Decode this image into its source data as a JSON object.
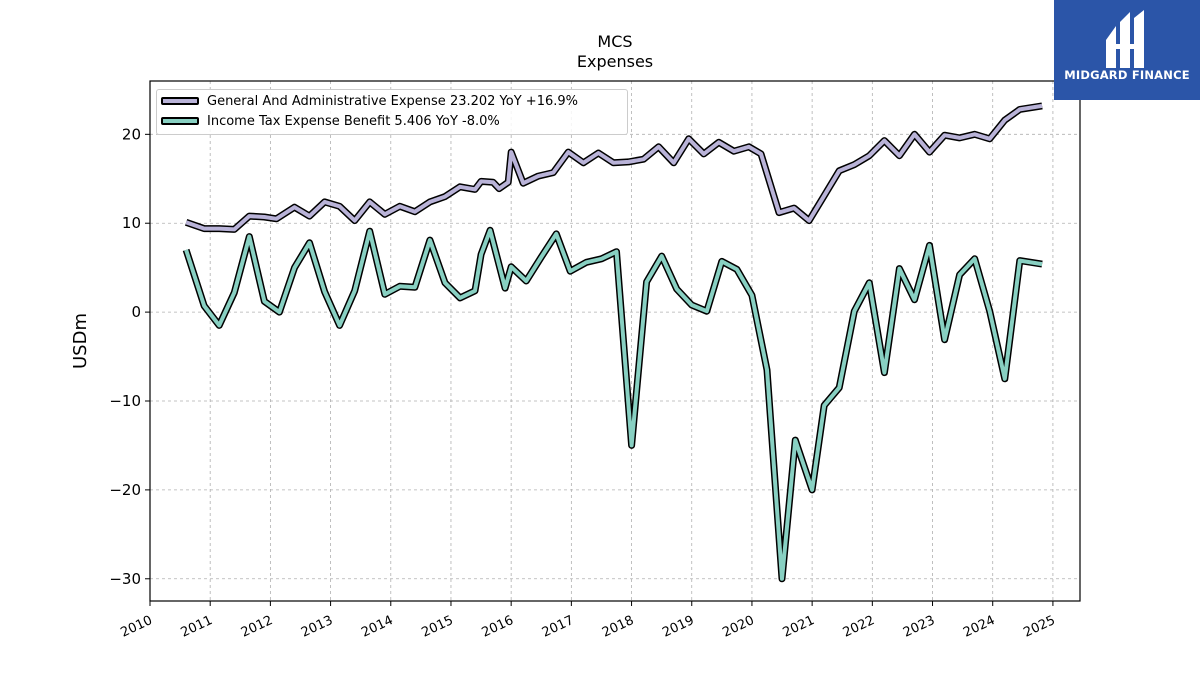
{
  "title_line1": "MCS",
  "title_line2": "Expenses",
  "logo_text": "MIDGARD FINANCE",
  "logo_icon": "midgard-monogram-icon",
  "chart_data": {
    "type": "line",
    "ylabel": "USDm",
    "xlabel": "",
    "xlim": [
      2010.0,
      2025.45
    ],
    "ylim": [
      -32.5,
      26
    ],
    "x_ticks": [
      "2010",
      "2011",
      "2012",
      "2013",
      "2014",
      "2015",
      "2016",
      "2017",
      "2018",
      "2019",
      "2020",
      "2021",
      "2022",
      "2023",
      "2024",
      "2025"
    ],
    "y_ticks": [
      "−30",
      "−20",
      "−10",
      "0",
      "10",
      "20"
    ],
    "y_tick_values": [
      -30,
      -20,
      -10,
      0,
      10,
      20
    ],
    "grid": true,
    "legend_position": "top-left",
    "series": [
      {
        "name": "General And Administrative Expense  23.202 YoY +16.9%",
        "color": "#b9b3d8",
        "points": [
          [
            2010.6,
            10.1
          ],
          [
            2010.9,
            9.4
          ],
          [
            2011.15,
            9.4
          ],
          [
            2011.4,
            9.3
          ],
          [
            2011.65,
            10.8
          ],
          [
            2011.9,
            10.7
          ],
          [
            2012.1,
            10.5
          ],
          [
            2012.4,
            11.8
          ],
          [
            2012.65,
            10.8
          ],
          [
            2012.9,
            12.4
          ],
          [
            2013.15,
            11.9
          ],
          [
            2013.4,
            10.3
          ],
          [
            2013.65,
            12.4
          ],
          [
            2013.9,
            11.0
          ],
          [
            2014.15,
            11.9
          ],
          [
            2014.4,
            11.3
          ],
          [
            2014.65,
            12.4
          ],
          [
            2014.9,
            13.0
          ],
          [
            2015.15,
            14.1
          ],
          [
            2015.4,
            13.8
          ],
          [
            2015.5,
            14.7
          ],
          [
            2015.7,
            14.6
          ],
          [
            2015.8,
            13.9
          ],
          [
            2015.95,
            14.6
          ],
          [
            2016.0,
            18.0
          ],
          [
            2016.2,
            14.5
          ],
          [
            2016.45,
            15.3
          ],
          [
            2016.7,
            15.7
          ],
          [
            2016.95,
            18.0
          ],
          [
            2017.2,
            16.8
          ],
          [
            2017.45,
            17.9
          ],
          [
            2017.7,
            16.8
          ],
          [
            2017.95,
            16.9
          ],
          [
            2018.2,
            17.2
          ],
          [
            2018.45,
            18.6
          ],
          [
            2018.7,
            16.8
          ],
          [
            2018.95,
            19.5
          ],
          [
            2019.2,
            17.8
          ],
          [
            2019.45,
            19.1
          ],
          [
            2019.7,
            18.1
          ],
          [
            2019.95,
            18.6
          ],
          [
            2020.15,
            17.8
          ],
          [
            2020.45,
            11.2
          ],
          [
            2020.7,
            11.7
          ],
          [
            2020.95,
            10.3
          ],
          [
            2021.2,
            13.1
          ],
          [
            2021.45,
            15.9
          ],
          [
            2021.7,
            16.6
          ],
          [
            2021.95,
            17.6
          ],
          [
            2022.2,
            19.3
          ],
          [
            2022.45,
            17.6
          ],
          [
            2022.7,
            20.0
          ],
          [
            2022.95,
            18.0
          ],
          [
            2023.2,
            19.9
          ],
          [
            2023.45,
            19.6
          ],
          [
            2023.7,
            20.0
          ],
          [
            2023.95,
            19.5
          ],
          [
            2024.2,
            21.6
          ],
          [
            2024.45,
            22.8
          ],
          [
            2024.82,
            23.2
          ]
        ]
      },
      {
        "name": "Income Tax Expense Benefit  5.406 YoY -8.0%",
        "color": "#88d0c2",
        "points": [
          [
            2010.6,
            7.0
          ],
          [
            2010.9,
            0.7
          ],
          [
            2011.15,
            -1.5
          ],
          [
            2011.4,
            2.2
          ],
          [
            2011.65,
            8.5
          ],
          [
            2011.9,
            1.2
          ],
          [
            2012.15,
            0.0
          ],
          [
            2012.4,
            5.0
          ],
          [
            2012.65,
            7.8
          ],
          [
            2012.9,
            2.3
          ],
          [
            2013.15,
            -1.5
          ],
          [
            2013.4,
            2.4
          ],
          [
            2013.65,
            9.1
          ],
          [
            2013.9,
            2.0
          ],
          [
            2014.15,
            2.9
          ],
          [
            2014.4,
            2.8
          ],
          [
            2014.65,
            8.1
          ],
          [
            2014.9,
            3.3
          ],
          [
            2015.15,
            1.6
          ],
          [
            2015.4,
            2.4
          ],
          [
            2015.5,
            6.5
          ],
          [
            2015.65,
            9.2
          ],
          [
            2015.9,
            2.7
          ],
          [
            2016.0,
            5.1
          ],
          [
            2016.25,
            3.5
          ],
          [
            2016.5,
            6.2
          ],
          [
            2016.75,
            8.8
          ],
          [
            2016.98,
            4.6
          ],
          [
            2017.25,
            5.6
          ],
          [
            2017.5,
            6.0
          ],
          [
            2017.75,
            6.8
          ],
          [
            2018.0,
            -15.0
          ],
          [
            2018.25,
            3.4
          ],
          [
            2018.5,
            6.3
          ],
          [
            2018.75,
            2.6
          ],
          [
            2019.0,
            0.8
          ],
          [
            2019.25,
            0.1
          ],
          [
            2019.5,
            5.7
          ],
          [
            2019.75,
            4.8
          ],
          [
            2020.0,
            1.9
          ],
          [
            2020.25,
            -6.5
          ],
          [
            2020.5,
            -30.0
          ],
          [
            2020.72,
            -14.4
          ],
          [
            2021.0,
            -20.0
          ],
          [
            2021.2,
            -10.5
          ],
          [
            2021.45,
            -8.5
          ],
          [
            2021.7,
            0.1
          ],
          [
            2021.95,
            3.3
          ],
          [
            2022.2,
            -6.8
          ],
          [
            2022.45,
            4.9
          ],
          [
            2022.7,
            1.4
          ],
          [
            2022.95,
            7.5
          ],
          [
            2023.2,
            -3.1
          ],
          [
            2023.45,
            4.2
          ],
          [
            2023.7,
            6.0
          ],
          [
            2023.95,
            0.1
          ],
          [
            2024.2,
            -7.5
          ],
          [
            2024.45,
            5.8
          ],
          [
            2024.82,
            5.4
          ]
        ]
      }
    ]
  }
}
